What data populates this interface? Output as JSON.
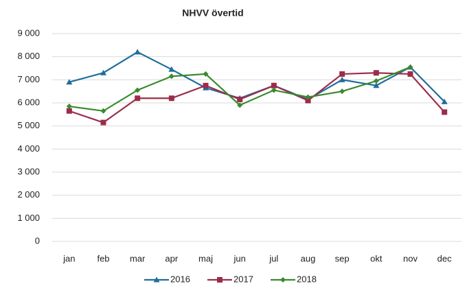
{
  "chart_data": {
    "type": "line",
    "title": "NHVV övertid",
    "categories": [
      "jan",
      "feb",
      "mar",
      "apr",
      "maj",
      "jun",
      "jul",
      "aug",
      "sep",
      "okt",
      "nov",
      "dec"
    ],
    "series": [
      {
        "name": "2016",
        "color": "#1f6e9c",
        "marker": "triangle",
        "values": [
          6900,
          7300,
          8200,
          7450,
          6650,
          6200,
          6750,
          6150,
          7000,
          6750,
          7550,
          6050
        ]
      },
      {
        "name": "2017",
        "color": "#9b2d4a",
        "marker": "square",
        "values": [
          5650,
          5150,
          6200,
          6200,
          6750,
          6150,
          6750,
          6100,
          7250,
          7300,
          7250,
          5600
        ]
      },
      {
        "name": "2018",
        "color": "#3a8a2e",
        "marker": "diamond",
        "values": [
          5850,
          5650,
          6550,
          7150,
          7250,
          5900,
          6550,
          6250,
          6500,
          6950,
          7550,
          null
        ]
      }
    ],
    "ylim": [
      0,
      9000
    ],
    "yticks": [
      0,
      {
        "value": 1000,
        "label": "1 000"
      },
      {
        "value": 2000,
        "label": "2 000"
      },
      {
        "value": 3000,
        "label": "3 000"
      },
      {
        "value": 4000,
        "label": "4 000"
      },
      {
        "value": 5000,
        "label": "5 000"
      },
      {
        "value": 6000,
        "label": "6 000"
      },
      {
        "value": 7000,
        "label": "7 000"
      },
      {
        "value": 8000,
        "label": "8 000"
      },
      {
        "value": 9000,
        "label": "9 000"
      }
    ],
    "grid": true,
    "legend": "bottom"
  }
}
